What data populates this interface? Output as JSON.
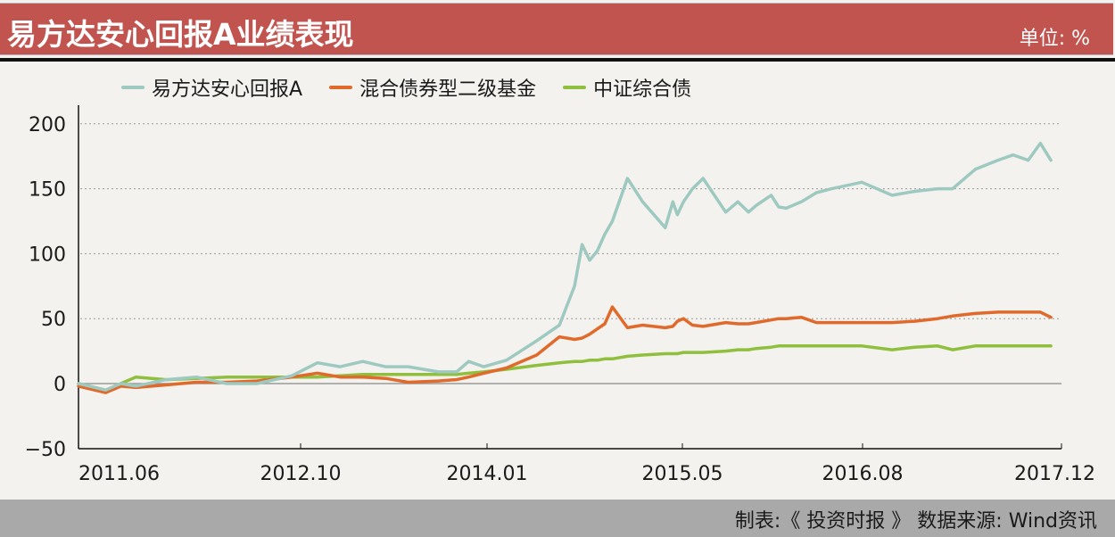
{
  "header": {
    "title": "易方达安心回报A业绩表现",
    "unit": "单位: %"
  },
  "footer": {
    "source": "制表:《 投资时报 》 数据来源: Wind资讯"
  },
  "colors": {
    "title_bg": "#c25450",
    "series_fund": "#9ec9c0",
    "series_mixed_bond": "#e06a2c",
    "series_bond_index": "#8fbf3c",
    "footer_bg": "#a9a9a9",
    "background": "#f3f2ee"
  },
  "legend": [
    {
      "label": "易方达安心回报A",
      "color": "#9ec9c0"
    },
    {
      "label": "混合债券型二级基金",
      "color": "#e06a2c"
    },
    {
      "label": "中证综合债",
      "color": "#8fbf3c"
    }
  ],
  "chart_data": {
    "type": "line",
    "title": "易方达安心回报A业绩表现",
    "subtitle": "单位: %",
    "xlabel": "",
    "ylabel": "%",
    "ylim": [
      -50,
      200
    ],
    "yticks": [
      -50,
      0,
      50,
      100,
      150,
      200
    ],
    "xticks": [
      "2011.06",
      "2012.10",
      "2014.01",
      "2015.05",
      "2016.08",
      "2017.12"
    ],
    "xrange": [
      2011.42,
      2017.92
    ],
    "grid": "horizontal dotted",
    "legend_position": "top",
    "x": [
      2011.42,
      2011.6,
      2011.7,
      2011.8,
      2012.0,
      2012.2,
      2012.4,
      2012.6,
      2012.83,
      2013.0,
      2013.15,
      2013.3,
      2013.45,
      2013.6,
      2013.8,
      2013.92,
      2014.0,
      2014.1,
      2014.25,
      2014.45,
      2014.6,
      2014.7,
      2014.75,
      2014.8,
      2014.85,
      2014.9,
      2014.95,
      2015.05,
      2015.15,
      2015.3,
      2015.35,
      2015.38,
      2015.42,
      2015.48,
      2015.55,
      2015.7,
      2015.78,
      2015.85,
      2015.9,
      2016.0,
      2016.05,
      2016.1,
      2016.2,
      2016.3,
      2016.4,
      2016.6,
      2016.8,
      2016.95,
      2017.1,
      2017.2,
      2017.35,
      2017.5,
      2017.6,
      2017.7,
      2017.78,
      2017.85
    ],
    "series": [
      {
        "name": "易方达安心回报A",
        "color": "#9ec9c0",
        "values": [
          0,
          -5,
          0,
          -2,
          3,
          5,
          0,
          0,
          6,
          16,
          13,
          17,
          13,
          13,
          9,
          9,
          17,
          13,
          18,
          33,
          45,
          75,
          107,
          95,
          102,
          115,
          125,
          158,
          140,
          120,
          140,
          130,
          140,
          150,
          158,
          132,
          140,
          132,
          137,
          145,
          136,
          135,
          140,
          147,
          150,
          155,
          145,
          148,
          150,
          150,
          165,
          172,
          176,
          172,
          185,
          172
        ]
      },
      {
        "name": "混合债券型二级基金",
        "color": "#e06a2c",
        "values": [
          -2,
          -7,
          -2,
          -3,
          -1,
          1,
          1,
          2,
          5,
          8,
          5,
          5,
          4,
          1,
          2,
          3,
          5,
          8,
          12,
          22,
          36,
          34,
          35,
          38,
          42,
          46,
          59,
          43,
          45,
          43,
          44,
          48,
          50,
          45,
          44,
          47,
          46,
          46,
          47,
          49,
          50,
          50,
          51,
          47,
          47,
          47,
          47,
          48,
          50,
          52,
          54,
          55,
          55,
          55,
          55,
          51
        ],
        "x_override": null
      },
      {
        "name": "中证综合债",
        "color": "#8fbf3c",
        "values": [
          0,
          -5,
          0,
          5,
          3,
          4,
          5,
          5,
          5,
          5,
          6,
          7,
          7,
          7,
          7,
          7,
          8,
          9,
          11,
          14,
          16,
          17,
          17,
          18,
          18,
          19,
          19,
          21,
          22,
          23,
          23,
          23,
          24,
          24,
          24,
          25,
          26,
          26,
          27,
          28,
          29,
          29,
          29,
          29,
          29,
          29,
          26,
          28,
          29,
          26,
          29,
          29,
          29,
          29,
          29,
          29
        ]
      }
    ]
  }
}
